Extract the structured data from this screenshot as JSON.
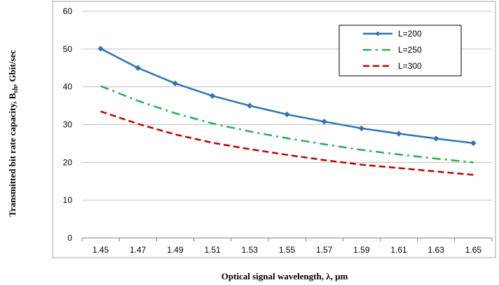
{
  "chart_data": {
    "type": "line",
    "title": "",
    "xlabel": "Optical signal wavelength, λ, μm",
    "ylabel_main": "Transmitted bit rate capacity, B",
    "ylabel_sub": "sh",
    "ylabel_unit": ", Gbit/sec",
    "x": [
      1.45,
      1.47,
      1.49,
      1.51,
      1.53,
      1.55,
      1.57,
      1.59,
      1.61,
      1.63,
      1.65
    ],
    "x_tick_labels": [
      "1.45",
      "1.47",
      "1.49",
      "1.51",
      "1.53",
      "1.55",
      "1.57",
      "1.59",
      "1.61",
      "1.63",
      "1.65"
    ],
    "ylim": [
      0,
      60
    ],
    "y_ticks": [
      0,
      10,
      20,
      30,
      40,
      50,
      60
    ],
    "grid": "horizontal",
    "legend_position": "top-right",
    "series": [
      {
        "name": "L=200",
        "color": "#2e75b6",
        "style": "solid-with-diamond-markers",
        "values": [
          50.1,
          45.0,
          40.9,
          37.6,
          35.0,
          32.7,
          30.8,
          29.0,
          27.6,
          26.3,
          25.1
        ]
      },
      {
        "name": "L=250",
        "color": "#22b14c",
        "style": "dash-dot",
        "values": [
          40.2,
          36.3,
          33.0,
          30.3,
          28.2,
          26.4,
          24.8,
          23.3,
          22.1,
          21.0,
          20.0
        ]
      },
      {
        "name": "L=300",
        "color": "#c00000",
        "style": "dashed",
        "values": [
          33.5,
          30.2,
          27.4,
          25.2,
          23.5,
          22.0,
          20.6,
          19.4,
          18.5,
          17.6,
          16.7
        ]
      }
    ]
  }
}
